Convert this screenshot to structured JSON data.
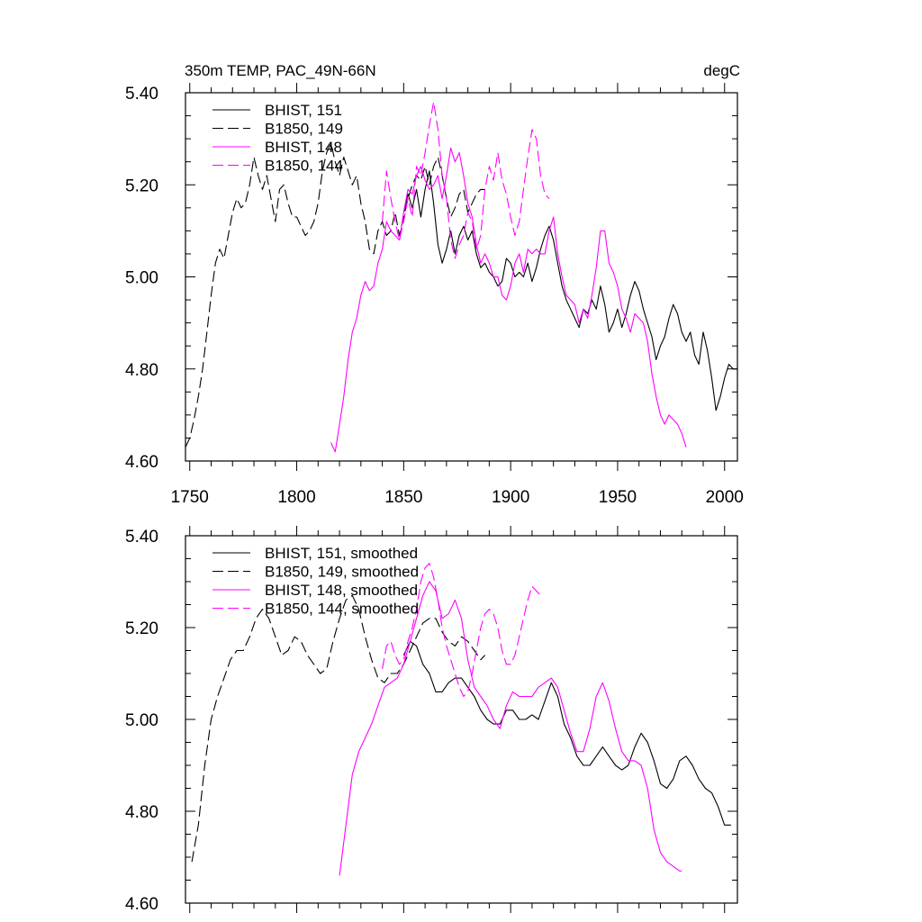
{
  "chart_data": [
    {
      "type": "line",
      "title": "350m TEMP, PAC_49N-66N",
      "units": "degC",
      "xlabel": "",
      "ylabel": "",
      "xlim": [
        1748,
        2006
      ],
      "ylim": [
        4.6,
        5.4
      ],
      "xticks": [
        1750,
        1800,
        1850,
        1900,
        1950,
        2000
      ],
      "yticks": [
        4.6,
        4.8,
        5.0,
        5.2,
        5.4
      ],
      "yticklabels": [
        "4.60",
        "4.80",
        "5.00",
        "5.20",
        "5.40"
      ],
      "xticklabels": [
        "1750",
        "1800",
        "1850",
        "1900",
        "1950",
        "2000"
      ],
      "legend": "top-left",
      "grid": false,
      "series": [
        {
          "name": "BHIST, 151",
          "color": "#000000",
          "dash": "solid",
          "x": [
            1850,
            1852,
            1854,
            1856,
            1858,
            1860,
            1862,
            1864,
            1866,
            1868,
            1870,
            1872,
            1874,
            1876,
            1878,
            1880,
            1882,
            1884,
            1886,
            1888,
            1890,
            1892,
            1894,
            1896,
            1898,
            1900,
            1902,
            1904,
            1906,
            1908,
            1910,
            1912,
            1914,
            1916,
            1918,
            1920,
            1922,
            1924,
            1926,
            1928,
            1930,
            1932,
            1934,
            1936,
            1938,
            1940,
            1942,
            1944,
            1946,
            1948,
            1950,
            1952,
            1954,
            1956,
            1958,
            1960,
            1962,
            1964,
            1966,
            1968,
            1970,
            1972,
            1974,
            1976,
            1978,
            1980,
            1982,
            1984,
            1986,
            1988,
            1990,
            1992,
            1994,
            1996,
            1998,
            2000,
            2002,
            2004,
            2006
          ],
          "values": [
            5.14,
            5.18,
            5.15,
            5.19,
            5.13,
            5.19,
            5.23,
            5.16,
            5.07,
            5.03,
            5.06,
            5.1,
            5.05,
            5.09,
            5.11,
            5.08,
            5.1,
            5.05,
            5.02,
            5.03,
            5.01,
            5.0,
            4.98,
            4.99,
            5.04,
            5.03,
            5.0,
            5.01,
            5.0,
            5.03,
            4.99,
            5.02,
            5.06,
            5.09,
            5.11,
            5.08,
            5.03,
            4.98,
            4.95,
            4.93,
            4.91,
            4.89,
            4.93,
            4.92,
            4.95,
            4.93,
            4.98,
            4.94,
            4.88,
            4.9,
            4.93,
            4.89,
            4.92,
            4.96,
            4.99,
            4.97,
            4.93,
            4.9,
            4.87,
            4.82,
            4.85,
            4.87,
            4.91,
            4.94,
            4.92,
            4.88,
            4.86,
            4.88,
            4.83,
            4.81,
            4.88,
            4.84,
            4.78,
            4.71,
            4.74,
            4.78,
            4.81,
            4.8,
            4.8
          ]
        },
        {
          "name": "B1850, 149",
          "color": "#000000",
          "dash": "dashed",
          "x": [
            1748,
            1750,
            1752,
            1754,
            1756,
            1758,
            1760,
            1762,
            1764,
            1766,
            1768,
            1770,
            1772,
            1774,
            1776,
            1778,
            1780,
            1782,
            1784,
            1786,
            1788,
            1790,
            1792,
            1794,
            1796,
            1798,
            1800,
            1802,
            1804,
            1806,
            1808,
            1810,
            1812,
            1814,
            1816,
            1818,
            1820,
            1822,
            1824,
            1826,
            1828,
            1830,
            1832,
            1834,
            1836,
            1838,
            1840,
            1842,
            1844,
            1846,
            1848,
            1850,
            1852,
            1854,
            1856,
            1858,
            1860,
            1862,
            1864,
            1866,
            1868,
            1870,
            1872,
            1874,
            1876,
            1878,
            1880,
            1882,
            1884,
            1886,
            1888
          ],
          "values": [
            4.63,
            4.65,
            4.69,
            4.74,
            4.8,
            4.88,
            4.96,
            5.03,
            5.06,
            5.04,
            5.09,
            5.14,
            5.17,
            5.15,
            5.16,
            5.2,
            5.26,
            5.22,
            5.19,
            5.22,
            5.17,
            5.12,
            5.19,
            5.2,
            5.16,
            5.13,
            5.13,
            5.11,
            5.09,
            5.1,
            5.12,
            5.16,
            5.23,
            5.27,
            5.29,
            5.25,
            5.22,
            5.26,
            5.23,
            5.2,
            5.22,
            5.16,
            5.12,
            5.06,
            5.05,
            5.1,
            5.12,
            5.09,
            5.1,
            5.14,
            5.09,
            5.13,
            5.17,
            5.2,
            5.22,
            5.21,
            5.24,
            5.2,
            5.24,
            5.26,
            5.22,
            5.17,
            5.13,
            5.15,
            5.18,
            5.19,
            5.14,
            5.16,
            5.18,
            5.19,
            5.19
          ]
        },
        {
          "name": "BHIST, 148",
          "color": "#ff00ff",
          "dash": "solid",
          "x": [
            1816,
            1818,
            1820,
            1822,
            1824,
            1826,
            1828,
            1830,
            1832,
            1834,
            1836,
            1838,
            1840,
            1842,
            1844,
            1846,
            1848,
            1850,
            1852,
            1854,
            1856,
            1858,
            1860,
            1862,
            1864,
            1866,
            1868,
            1870,
            1872,
            1874,
            1876,
            1878,
            1880,
            1882,
            1884,
            1886,
            1888,
            1890,
            1892,
            1894,
            1896,
            1898,
            1900,
            1902,
            1904,
            1906,
            1908,
            1910,
            1912,
            1914,
            1916,
            1918,
            1920,
            1922,
            1924,
            1926,
            1928,
            1930,
            1932,
            1934,
            1936,
            1938,
            1940,
            1942,
            1944,
            1946,
            1948,
            1950,
            1952,
            1954,
            1956,
            1958,
            1960,
            1962,
            1964,
            1966,
            1968,
            1970,
            1972,
            1974,
            1976,
            1978,
            1980,
            1982
          ],
          "values": [
            4.64,
            4.62,
            4.68,
            4.74,
            4.82,
            4.88,
            4.91,
            4.96,
            4.99,
            4.97,
            4.98,
            5.03,
            5.06,
            5.12,
            5.1,
            5.09,
            5.08,
            5.14,
            5.19,
            5.18,
            5.22,
            5.24,
            5.21,
            5.19,
            5.2,
            5.22,
            5.17,
            5.22,
            5.28,
            5.25,
            5.27,
            5.22,
            5.16,
            5.13,
            5.07,
            5.03,
            5.05,
            5.03,
            5.0,
            5.0,
            4.96,
            4.95,
            4.98,
            5.03,
            5.05,
            5.01,
            5.06,
            5.05,
            5.06,
            5.05,
            5.05,
            5.1,
            5.13,
            5.05,
            5.0,
            4.96,
            4.95,
            4.94,
            4.9,
            4.93,
            4.91,
            4.96,
            5.02,
            5.1,
            5.1,
            5.03,
            5.01,
            4.98,
            4.93,
            4.91,
            4.88,
            4.92,
            4.91,
            4.9,
            4.86,
            4.79,
            4.74,
            4.7,
            4.68,
            4.7,
            4.69,
            4.68,
            4.66,
            4.63
          ]
        },
        {
          "name": "B1850, 144",
          "color": "#ff00ff",
          "dash": "dashed",
          "x": [
            1840,
            1842,
            1844,
            1846,
            1848,
            1850,
            1852,
            1854,
            1856,
            1858,
            1860,
            1862,
            1864,
            1866,
            1868,
            1870,
            1872,
            1874,
            1876,
            1878,
            1880,
            1882,
            1884,
            1886,
            1888,
            1890,
            1892,
            1894,
            1896,
            1898,
            1900,
            1902,
            1904,
            1906,
            1908,
            1910,
            1912,
            1914,
            1916,
            1918
          ],
          "values": [
            5.12,
            5.23,
            5.17,
            5.12,
            5.08,
            5.12,
            5.17,
            5.13,
            5.24,
            5.22,
            5.27,
            5.33,
            5.38,
            5.32,
            5.22,
            5.17,
            5.08,
            5.04,
            5.07,
            5.09,
            5.14,
            5.12,
            5.06,
            5.09,
            5.19,
            5.24,
            5.21,
            5.27,
            5.21,
            5.18,
            5.13,
            5.09,
            5.12,
            5.19,
            5.26,
            5.32,
            5.3,
            5.22,
            5.18,
            5.17
          ]
        }
      ]
    },
    {
      "type": "line",
      "title": "",
      "units": "",
      "xlabel": "",
      "ylabel": "",
      "xlim": [
        1748,
        2006
      ],
      "ylim": [
        4.6,
        5.4
      ],
      "xticks": [
        1750,
        1800,
        1850,
        1900,
        1950,
        2000
      ],
      "yticks": [
        4.6,
        4.8,
        5.0,
        5.2,
        5.4
      ],
      "yticklabels": [
        "4.60",
        "4.80",
        "5.00",
        "5.20",
        "5.40"
      ],
      "xticklabels": [],
      "legend": "top-left",
      "grid": false,
      "series": [
        {
          "name": "BHIST, 151, smoothed",
          "color": "#000000",
          "dash": "solid",
          "x": [
            1850,
            1853,
            1856,
            1859,
            1862,
            1865,
            1868,
            1871,
            1874,
            1877,
            1880,
            1883,
            1886,
            1889,
            1892,
            1895,
            1898,
            1901,
            1904,
            1907,
            1910,
            1913,
            1916,
            1919,
            1922,
            1925,
            1928,
            1931,
            1934,
            1937,
            1940,
            1943,
            1946,
            1949,
            1952,
            1955,
            1958,
            1961,
            1964,
            1967,
            1970,
            1973,
            1976,
            1979,
            1982,
            1985,
            1988,
            1991,
            1994,
            1997,
            2000,
            2003
          ],
          "values": [
            5.14,
            5.17,
            5.16,
            5.12,
            5.1,
            5.06,
            5.06,
            5.08,
            5.09,
            5.09,
            5.07,
            5.05,
            5.02,
            5.0,
            4.99,
            4.99,
            5.02,
            5.02,
            5.0,
            5.0,
            5.01,
            5.0,
            5.04,
            5.08,
            5.05,
            4.99,
            4.96,
            4.92,
            4.9,
            4.9,
            4.92,
            4.94,
            4.92,
            4.9,
            4.89,
            4.9,
            4.94,
            4.97,
            4.95,
            4.91,
            4.86,
            4.85,
            4.87,
            4.91,
            4.92,
            4.9,
            4.87,
            4.85,
            4.84,
            4.81,
            4.77,
            4.77
          ]
        },
        {
          "name": "B1850, 149, smoothed",
          "color": "#000000",
          "dash": "dashed",
          "x": [
            1751,
            1754,
            1757,
            1760,
            1763,
            1766,
            1769,
            1772,
            1775,
            1778,
            1781,
            1784,
            1787,
            1790,
            1793,
            1796,
            1799,
            1802,
            1805,
            1808,
            1811,
            1814,
            1817,
            1820,
            1823,
            1826,
            1829,
            1832,
            1835,
            1838,
            1841,
            1844,
            1847,
            1850,
            1853,
            1856,
            1859,
            1862,
            1865,
            1868,
            1871,
            1874,
            1877,
            1880,
            1883,
            1886,
            1888
          ],
          "values": [
            4.69,
            4.77,
            4.9,
            5.0,
            5.05,
            5.09,
            5.13,
            5.15,
            5.15,
            5.18,
            5.22,
            5.24,
            5.22,
            5.18,
            5.14,
            5.15,
            5.18,
            5.17,
            5.14,
            5.12,
            5.1,
            5.11,
            5.17,
            5.22,
            5.26,
            5.27,
            5.24,
            5.18,
            5.13,
            5.09,
            5.08,
            5.1,
            5.1,
            5.12,
            5.15,
            5.18,
            5.21,
            5.22,
            5.22,
            5.19,
            5.17,
            5.16,
            5.18,
            5.17,
            5.15,
            5.13,
            5.14
          ]
        },
        {
          "name": "BHIST, 148, smoothed",
          "color": "#ff00ff",
          "dash": "solid",
          "x": [
            1820,
            1823,
            1826,
            1829,
            1832,
            1835,
            1838,
            1841,
            1844,
            1847,
            1850,
            1853,
            1856,
            1859,
            1862,
            1865,
            1868,
            1871,
            1874,
            1877,
            1880,
            1883,
            1886,
            1889,
            1892,
            1895,
            1898,
            1901,
            1904,
            1907,
            1910,
            1913,
            1916,
            1919,
            1922,
            1925,
            1928,
            1931,
            1934,
            1937,
            1940,
            1943,
            1946,
            1949,
            1952,
            1955,
            1958,
            1961,
            1964,
            1967,
            1970,
            1973,
            1976,
            1979,
            1980
          ],
          "values": [
            4.66,
            4.77,
            4.88,
            4.93,
            4.96,
            4.99,
            5.03,
            5.07,
            5.08,
            5.09,
            5.12,
            5.17,
            5.22,
            5.27,
            5.3,
            5.28,
            5.22,
            5.23,
            5.26,
            5.22,
            5.13,
            5.07,
            5.05,
            5.03,
            5.0,
            4.98,
            5.03,
            5.06,
            5.05,
            5.05,
            5.05,
            5.07,
            5.08,
            5.09,
            5.07,
            5.02,
            4.97,
            4.93,
            4.93,
            4.98,
            5.05,
            5.08,
            5.04,
            4.98,
            4.93,
            4.91,
            4.91,
            4.9,
            4.85,
            4.76,
            4.71,
            4.69,
            4.68,
            4.67,
            4.67
          ]
        },
        {
          "name": "B1850, 144, smoothed",
          "color": "#ff00ff",
          "dash": "dashed",
          "x": [
            1840,
            1842,
            1844,
            1846,
            1848,
            1850,
            1852,
            1854,
            1856,
            1858,
            1860,
            1862,
            1864,
            1866,
            1868,
            1870,
            1872,
            1874,
            1876,
            1878,
            1880,
            1882,
            1884,
            1886,
            1888,
            1890,
            1892,
            1894,
            1896,
            1898,
            1900,
            1902,
            1904,
            1906,
            1908,
            1910,
            1912,
            1914
          ],
          "values": [
            5.11,
            5.16,
            5.17,
            5.14,
            5.12,
            5.13,
            5.17,
            5.2,
            5.24,
            5.3,
            5.33,
            5.34,
            5.31,
            5.26,
            5.2,
            5.16,
            5.13,
            5.1,
            5.07,
            5.05,
            5.06,
            5.1,
            5.15,
            5.2,
            5.23,
            5.24,
            5.23,
            5.2,
            5.15,
            5.12,
            5.12,
            5.14,
            5.18,
            5.22,
            5.26,
            5.29,
            5.28,
            5.27
          ]
        }
      ]
    }
  ]
}
